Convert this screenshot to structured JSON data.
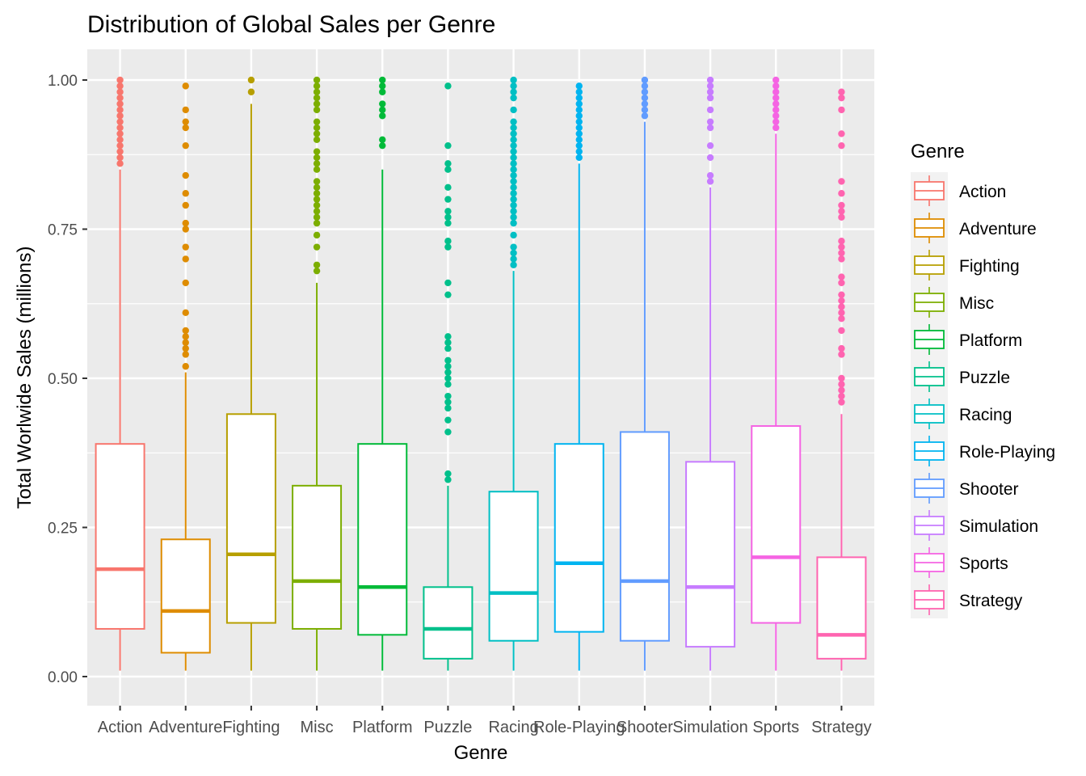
{
  "chart_data": {
    "type": "boxplot",
    "title": "Distribution of Global Sales per Genre",
    "xlabel": "Genre",
    "ylabel": "Total Worlwide Sales (millions)",
    "ylim": [
      -0.1,
      1.05
    ],
    "yticks": [
      "0.00",
      "0.25",
      "0.50",
      "0.75",
      "1.00"
    ],
    "ytick_values": [
      0,
      0.25,
      0.5,
      0.75,
      1.0
    ],
    "grid": true,
    "background": "#EBEBEB",
    "legend": {
      "title": "Genre",
      "placement": "right"
    },
    "categories": [
      "Action",
      "Adventure",
      "Fighting",
      "Misc",
      "Platform",
      "Puzzle",
      "Racing",
      "Role-Playing",
      "Shooter",
      "Simulation",
      "Sports",
      "Strategy"
    ],
    "series": [
      {
        "name": "Action",
        "color": "#F8766D",
        "q1": 0.08,
        "median": 0.18,
        "q3": 0.39,
        "whisker_low": 0.01,
        "whisker_high": 0.85,
        "outliers": [
          0.86,
          0.87,
          0.88,
          0.89,
          0.9,
          0.91,
          0.92,
          0.93,
          0.94,
          0.95,
          0.96,
          0.97,
          0.98,
          0.99,
          1.0
        ]
      },
      {
        "name": "Adventure",
        "color": "#DE8C00",
        "q1": 0.04,
        "median": 0.11,
        "q3": 0.23,
        "whisker_low": 0.01,
        "whisker_high": 0.51,
        "outliers": [
          0.52,
          0.54,
          0.55,
          0.56,
          0.57,
          0.58,
          0.61,
          0.66,
          0.7,
          0.72,
          0.75,
          0.76,
          0.79,
          0.81,
          0.84,
          0.89,
          0.92,
          0.93,
          0.95,
          0.99
        ]
      },
      {
        "name": "Fighting",
        "color": "#B79F00",
        "q1": 0.09,
        "median": 0.205,
        "q3": 0.44,
        "whisker_low": 0.01,
        "whisker_high": 0.96,
        "outliers": [
          0.98,
          1.0
        ]
      },
      {
        "name": "Misc",
        "color": "#7CAE00",
        "q1": 0.08,
        "median": 0.16,
        "q3": 0.32,
        "whisker_low": 0.01,
        "whisker_high": 0.66,
        "outliers": [
          0.68,
          0.69,
          0.72,
          0.74,
          0.76,
          0.77,
          0.78,
          0.79,
          0.8,
          0.81,
          0.82,
          0.83,
          0.85,
          0.86,
          0.87,
          0.88,
          0.9,
          0.91,
          0.92,
          0.93,
          0.95,
          0.96,
          0.97,
          0.98,
          0.99,
          1.0
        ]
      },
      {
        "name": "Platform",
        "color": "#00BA38",
        "q1": 0.07,
        "median": 0.15,
        "q3": 0.39,
        "whisker_low": 0.01,
        "whisker_high": 0.85,
        "outliers": [
          0.89,
          0.9,
          0.94,
          0.95,
          0.96,
          0.98,
          0.99,
          1.0
        ]
      },
      {
        "name": "Puzzle",
        "color": "#00C08B",
        "q1": 0.03,
        "median": 0.08,
        "q3": 0.15,
        "whisker_low": 0.01,
        "whisker_high": 0.32,
        "outliers": [
          0.33,
          0.34,
          0.41,
          0.43,
          0.45,
          0.46,
          0.47,
          0.49,
          0.5,
          0.51,
          0.52,
          0.53,
          0.55,
          0.56,
          0.57,
          0.64,
          0.66,
          0.72,
          0.73,
          0.76,
          0.77,
          0.78,
          0.8,
          0.82,
          0.85,
          0.86,
          0.89,
          0.99
        ]
      },
      {
        "name": "Racing",
        "color": "#00BFC4",
        "q1": 0.06,
        "median": 0.14,
        "q3": 0.31,
        "whisker_low": 0.01,
        "whisker_high": 0.68,
        "outliers": [
          0.69,
          0.7,
          0.71,
          0.72,
          0.74,
          0.76,
          0.77,
          0.78,
          0.79,
          0.8,
          0.81,
          0.82,
          0.83,
          0.84,
          0.85,
          0.86,
          0.87,
          0.88,
          0.89,
          0.9,
          0.91,
          0.92,
          0.93,
          0.95,
          0.97,
          0.98,
          0.99,
          1.0
        ]
      },
      {
        "name": "Role-Playing",
        "color": "#00B4F0",
        "q1": 0.075,
        "median": 0.19,
        "q3": 0.39,
        "whisker_low": 0.01,
        "whisker_high": 0.86,
        "outliers": [
          0.87,
          0.88,
          0.89,
          0.9,
          0.91,
          0.92,
          0.93,
          0.94,
          0.95,
          0.96,
          0.97,
          0.98,
          0.99
        ]
      },
      {
        "name": "Shooter",
        "color": "#619CFF",
        "q1": 0.06,
        "median": 0.16,
        "q3": 0.41,
        "whisker_low": 0.01,
        "whisker_high": 0.93,
        "outliers": [
          0.94,
          0.95,
          0.96,
          0.97,
          0.98,
          0.99,
          1.0
        ]
      },
      {
        "name": "Simulation",
        "color": "#C77CFF",
        "q1": 0.05,
        "median": 0.15,
        "q3": 0.36,
        "whisker_low": 0.01,
        "whisker_high": 0.82,
        "outliers": [
          0.83,
          0.84,
          0.87,
          0.89,
          0.92,
          0.93,
          0.95,
          0.97,
          0.98,
          0.99,
          1.0
        ]
      },
      {
        "name": "Sports",
        "color": "#F564E3",
        "q1": 0.09,
        "median": 0.2,
        "q3": 0.42,
        "whisker_low": 0.01,
        "whisker_high": 0.91,
        "outliers": [
          0.92,
          0.93,
          0.94,
          0.95,
          0.96,
          0.97,
          0.98,
          0.99,
          1.0
        ]
      },
      {
        "name": "Strategy",
        "color": "#FF64B0",
        "q1": 0.03,
        "median": 0.07,
        "q3": 0.2,
        "whisker_low": 0.01,
        "whisker_high": 0.44,
        "outliers": [
          0.46,
          0.47,
          0.48,
          0.49,
          0.5,
          0.54,
          0.55,
          0.58,
          0.6,
          0.61,
          0.62,
          0.63,
          0.64,
          0.66,
          0.67,
          0.7,
          0.71,
          0.72,
          0.73,
          0.77,
          0.78,
          0.79,
          0.81,
          0.83,
          0.89,
          0.91,
          0.95,
          0.97,
          0.98
        ]
      }
    ]
  }
}
